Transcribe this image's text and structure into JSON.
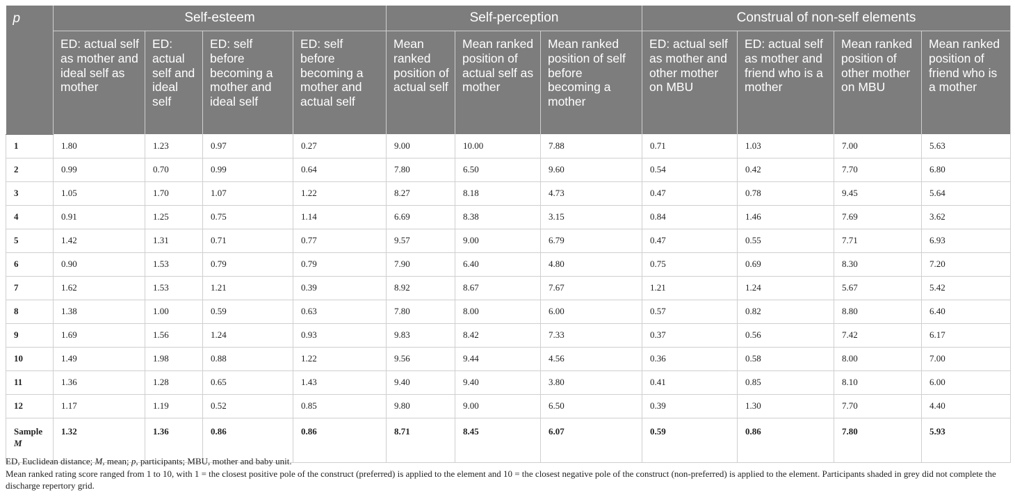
{
  "table": {
    "p_header": "p",
    "groups": [
      {
        "label": "Self-esteem",
        "span": 4
      },
      {
        "label": "Self-perception",
        "span": 3
      },
      {
        "label": "Construal of non-self elements",
        "span": 4
      }
    ],
    "columns": [
      "ED: actual self as mother and ideal self as mother",
      "ED: actual self and ideal self",
      "ED: self before becoming a mother and ideal self",
      "ED: self before becoming a mother and actual self",
      "Mean ranked position of actual self",
      "Mean ranked position of actual self as mother",
      "Mean ranked position of self before becoming a mother",
      "ED: actual self as mother and other mother on MBU",
      "ED: actual self as mother and friend who is a mother",
      "Mean ranked position of other mother on MBU",
      "Mean ranked position of friend who is a mother"
    ],
    "rows": [
      {
        "p": "1",
        "values": [
          "1.80",
          "1.23",
          "0.97",
          "0.27",
          "9.00",
          "10.00",
          "7.88",
          "0.71",
          "1.03",
          "7.00",
          "5.63"
        ]
      },
      {
        "p": "2",
        "values": [
          "0.99",
          "0.70",
          "0.99",
          "0.64",
          "7.80",
          "6.50",
          "9.60",
          "0.54",
          "0.42",
          "7.70",
          "6.80"
        ]
      },
      {
        "p": "3",
        "values": [
          "1.05",
          "1.70",
          "1.07",
          "1.22",
          "8.27",
          "8.18",
          "4.73",
          "0.47",
          "0.78",
          "9.45",
          "5.64"
        ]
      },
      {
        "p": "4",
        "values": [
          "0.91",
          "1.25",
          "0.75",
          "1.14",
          "6.69",
          "8.38",
          "3.15",
          "0.84",
          "1.46",
          "7.69",
          "3.62"
        ]
      },
      {
        "p": "5",
        "values": [
          "1.42",
          "1.31",
          "0.71",
          "0.77",
          "9.57",
          "9.00",
          "6.79",
          "0.47",
          "0.55",
          "7.71",
          "6.93"
        ]
      },
      {
        "p": "6",
        "values": [
          "0.90",
          "1.53",
          "0.79",
          "0.79",
          "7.90",
          "6.40",
          "4.80",
          "0.75",
          "0.69",
          "8.30",
          "7.20"
        ]
      },
      {
        "p": "7",
        "values": [
          "1.62",
          "1.53",
          "1.21",
          "0.39",
          "8.92",
          "8.67",
          "7.67",
          "1.21",
          "1.24",
          "5.67",
          "5.42"
        ]
      },
      {
        "p": "8",
        "values": [
          "1.38",
          "1.00",
          "0.59",
          "0.63",
          "7.80",
          "8.00",
          "6.00",
          "0.57",
          "0.82",
          "8.80",
          "6.40"
        ]
      },
      {
        "p": "9",
        "values": [
          "1.69",
          "1.56",
          "1.24",
          "0.93",
          "9.83",
          "8.42",
          "7.33",
          "0.37",
          "0.56",
          "7.42",
          "6.17"
        ]
      },
      {
        "p": "10",
        "values": [
          "1.49",
          "1.98",
          "0.88",
          "1.22",
          "9.56",
          "9.44",
          "4.56",
          "0.36",
          "0.58",
          "8.00",
          "7.00"
        ]
      },
      {
        "p": "11",
        "values": [
          "1.36",
          "1.28",
          "0.65",
          "1.43",
          "9.40",
          "9.40",
          "3.80",
          "0.41",
          "0.85",
          "8.10",
          "6.00"
        ]
      },
      {
        "p": "12",
        "values": [
          "1.17",
          "1.19",
          "0.52",
          "0.85",
          "9.80",
          "9.00",
          "6.50",
          "0.39",
          "1.30",
          "7.70",
          "4.40"
        ]
      }
    ],
    "mean_row": {
      "label_prefix": "Sample",
      "label_symbol": "M",
      "values": [
        "1.32",
        "1.36",
        "0.86",
        "0.86",
        "8.71",
        "8.45",
        "6.07",
        "0.59",
        "0.86",
        "7.80",
        "5.93"
      ]
    }
  },
  "notes": {
    "abbreviations": {
      "t1": "ED, Euclidean distance; ",
      "t2": "M",
      "t3": ", mean; ",
      "t4": "p",
      "t5": ", participants; MBU, mother and baby unit."
    },
    "scale_note": "Mean ranked rating score ranged from 1 to 10, with 1 = the closest positive pole of the construct (preferred) is applied to the element and 10 = the closest negative pole of the construct (non-preferred) is applied to the element. Participants shaded in grey did not complete the discharge repertory grid."
  },
  "colors": {
    "header_bg": "#7d7d7d",
    "header_text": "#ffffff",
    "grid_line": "#cfcfcf",
    "body_text": "#222222"
  }
}
